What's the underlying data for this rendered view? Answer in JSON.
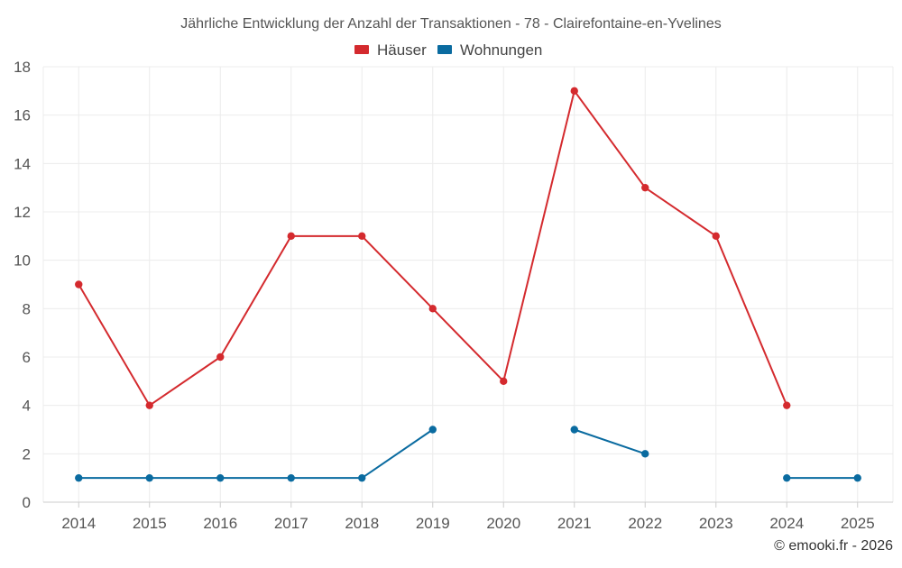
{
  "chart_data": {
    "type": "line",
    "title": "Jährliche Entwicklung der Anzahl der Transaktionen - 78 - Clairefontaine-en-Yvelines",
    "categories": [
      "2014",
      "2015",
      "2016",
      "2017",
      "2018",
      "2019",
      "2020",
      "2021",
      "2022",
      "2023",
      "2024",
      "2025"
    ],
    "series": [
      {
        "name": "Häuser",
        "color": "#d42a2e",
        "values": [
          9,
          4,
          6,
          11,
          11,
          8,
          5,
          17,
          13,
          11,
          4,
          null
        ]
      },
      {
        "name": "Wohnungen",
        "color": "#0a6ba0",
        "values": [
          1,
          1,
          1,
          1,
          1,
          3,
          null,
          3,
          2,
          null,
          1,
          1
        ]
      }
    ],
    "ylim": [
      0,
      18
    ],
    "yticks": [
      0,
      2,
      4,
      6,
      8,
      10,
      12,
      14,
      16,
      18
    ],
    "grid": true,
    "legend_position": "top-center",
    "credit": "© emooki.fr - 2026"
  }
}
